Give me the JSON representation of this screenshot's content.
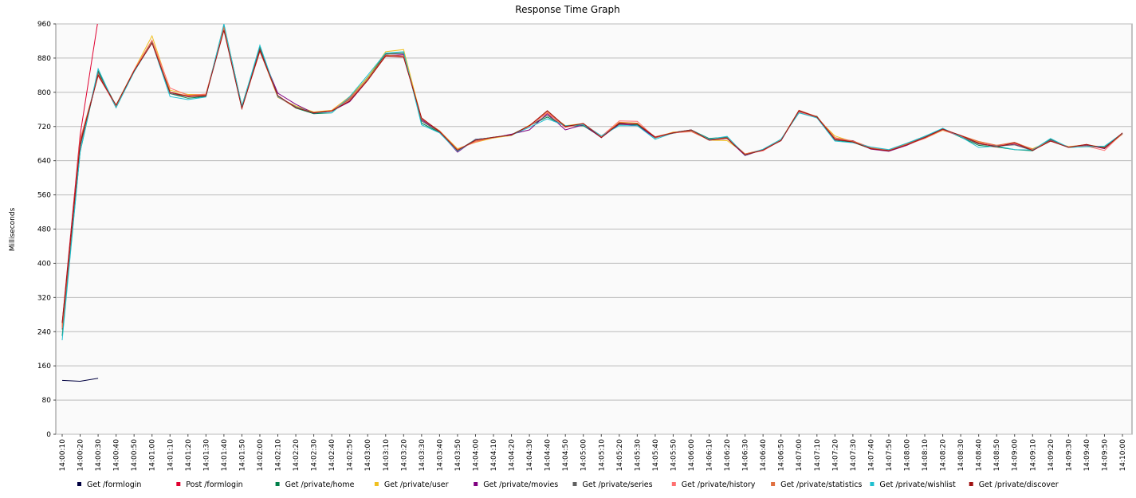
{
  "chart_data": {
    "type": "line",
    "title": "Response Time Graph",
    "y_label": "Milliseconds",
    "categories": [
      "14:00:10",
      "14:00:20",
      "14:00:30",
      "14:00:40",
      "14:00:50",
      "14:01:00",
      "14:01:10",
      "14:01:20",
      "14:01:30",
      "14:01:40",
      "14:01:50",
      "14:02:00",
      "14:02:10",
      "14:02:20",
      "14:02:30",
      "14:02:40",
      "14:02:50",
      "14:03:00",
      "14:03:10",
      "14:03:20",
      "14:03:30",
      "14:03:40",
      "14:03:50",
      "14:04:00",
      "14:04:10",
      "14:04:20",
      "14:04:30",
      "14:04:40",
      "14:04:50",
      "14:05:00",
      "14:05:10",
      "14:05:20",
      "14:05:30",
      "14:05:40",
      "14:05:50",
      "14:06:00",
      "14:06:10",
      "14:06:20",
      "14:06:30",
      "14:06:40",
      "14:06:50",
      "14:07:00",
      "14:07:10",
      "14:07:20",
      "14:07:30",
      "14:07:40",
      "14:07:50",
      "14:08:00",
      "14:08:10",
      "14:08:20",
      "14:08:30",
      "14:08:40",
      "14:08:50",
      "14:09:00",
      "14:09:10",
      "14:09:20",
      "14:09:30",
      "14:09:40",
      "14:09:50",
      "14:10:00"
    ],
    "ylim": [
      0,
      960
    ],
    "yticks": [
      0,
      80,
      160,
      240,
      320,
      400,
      480,
      560,
      640,
      720,
      800,
      880,
      960
    ],
    "grid": true,
    "series": [
      {
        "name": "Get /formlogin",
        "color": "#000040",
        "values": [
          126,
          124,
          131,
          null,
          null,
          null,
          null,
          null,
          null,
          null,
          null,
          null,
          null,
          null,
          null,
          null,
          null,
          null,
          null,
          null,
          null,
          null,
          null,
          null,
          null,
          null,
          null,
          null,
          null,
          null,
          null,
          null,
          null,
          null,
          null,
          null,
          null,
          null,
          null,
          null,
          null,
          null,
          null,
          null,
          null,
          null,
          null,
          null,
          null,
          null,
          null,
          null,
          null,
          null,
          null,
          null,
          null,
          null,
          null,
          null
        ]
      },
      {
        "name": "Post /formlogin",
        "color": "#e00030",
        "values": [
          260,
          700,
          970,
          null,
          null,
          null,
          null,
          null,
          null,
          null,
          null,
          null,
          null,
          null,
          null,
          null,
          null,
          null,
          null,
          null,
          null,
          null,
          null,
          null,
          null,
          null,
          null,
          null,
          null,
          null,
          null,
          null,
          null,
          null,
          null,
          null,
          null,
          null,
          null,
          null,
          null,
          null,
          null,
          null,
          null,
          null,
          null,
          null,
          null,
          null,
          null,
          null,
          null,
          null,
          null,
          null,
          null,
          null,
          null,
          null
        ]
      },
      {
        "name": "Get /private/home",
        "color": "#00804a",
        "values": [
          230,
          660,
          850,
          768,
          848,
          918,
          797,
          786,
          790,
          958,
          768,
          905,
          792,
          763,
          750,
          752,
          788,
          835,
          890,
          892,
          728,
          706,
          663,
          690,
          694,
          701,
          722,
          742,
          721,
          722,
          695,
          725,
          724,
          693,
          706,
          712,
          692,
          695,
          652,
          666,
          690,
          752,
          744,
          688,
          683,
          668,
          664,
          680,
          697,
          715,
          695,
          676,
          672,
          666,
          663,
          690,
          671,
          673,
          672,
          704
        ]
      },
      {
        "name": "Get /private/user",
        "color": "#f0c020",
        "values": [
          255,
          680,
          840,
          770,
          852,
          932,
          805,
          795,
          795,
          950,
          762,
          898,
          788,
          768,
          754,
          758,
          790,
          834,
          895,
          900,
          738,
          710,
          668,
          683,
          693,
          699,
          723,
          752,
          722,
          727,
          696,
          730,
          728,
          694,
          707,
          709,
          688,
          687,
          656,
          664,
          689,
          757,
          740,
          698,
          684,
          669,
          663,
          679,
          692,
          711,
          698,
          684,
          676,
          680,
          668,
          686,
          673,
          677,
          671,
          702
        ]
      },
      {
        "name": "Get /private/movies",
        "color": "#800080",
        "values": [
          250,
          675,
          842,
          766,
          850,
          918,
          800,
          790,
          793,
          952,
          764,
          900,
          798,
          772,
          751,
          756,
          778,
          828,
          886,
          888,
          736,
          707,
          660,
          690,
          694,
          702,
          712,
          750,
          712,
          724,
          694,
          726,
          722,
          694,
          705,
          712,
          688,
          692,
          652,
          666,
          687,
          756,
          741,
          688,
          687,
          667,
          662,
          676,
          694,
          712,
          697,
          679,
          675,
          679,
          664,
          687,
          671,
          677,
          668,
          703
        ]
      },
      {
        "name": "Get /private/series",
        "color": "#606060",
        "values": [
          245,
          672,
          847,
          764,
          849,
          921,
          797,
          790,
          791,
          957,
          766,
          902,
          790,
          766,
          752,
          756,
          785,
          831,
          889,
          891,
          733,
          707,
          664,
          689,
          695,
          700,
          721,
          746,
          719,
          726,
          698,
          727,
          727,
          695,
          704,
          711,
          691,
          694,
          654,
          665,
          688,
          756,
          742,
          688,
          685,
          670,
          665,
          679,
          696,
          714,
          697,
          679,
          674,
          677,
          664,
          689,
          672,
          675,
          671,
          703
        ]
      },
      {
        "name": "Get /private/history",
        "color": "#ff7070",
        "values": [
          248,
          690,
          838,
          768,
          852,
          922,
          810,
          793,
          796,
          950,
          762,
          895,
          792,
          764,
          752,
          757,
          787,
          829,
          884,
          884,
          740,
          708,
          666,
          684,
          695,
          700,
          721,
          752,
          718,
          726,
          697,
          733,
          732,
          694,
          705,
          708,
          689,
          692,
          655,
          663,
          688,
          754,
          741,
          692,
          686,
          671,
          664,
          677,
          692,
          712,
          698,
          682,
          676,
          680,
          666,
          686,
          672,
          674,
          664,
          704
        ]
      },
      {
        "name": "Get /private/statistics",
        "color": "#e07040",
        "values": [
          252,
          685,
          842,
          768,
          850,
          920,
          800,
          792,
          794,
          953,
          764,
          897,
          789,
          764,
          753,
          757,
          783,
          830,
          887,
          885,
          738,
          710,
          666,
          686,
          694,
          700,
          722,
          755,
          719,
          727,
          695,
          729,
          727,
          696,
          706,
          709,
          689,
          693,
          656,
          666,
          688,
          758,
          743,
          694,
          686,
          670,
          664,
          679,
          693,
          713,
          699,
          685,
          676,
          683,
          667,
          686,
          672,
          678,
          669,
          702
        ]
      },
      {
        "name": "Get /private/wishlist",
        "color": "#20c0d0",
        "values": [
          220,
          660,
          855,
          764,
          848,
          916,
          790,
          783,
          789,
          960,
          766,
          910,
          790,
          765,
          752,
          752,
          790,
          840,
          892,
          895,
          724,
          705,
          662,
          689,
          695,
          700,
          718,
          738,
          722,
          724,
          698,
          722,
          722,
          690,
          705,
          712,
          690,
          697,
          653,
          667,
          690,
          752,
          740,
          686,
          682,
          672,
          666,
          681,
          697,
          716,
          696,
          671,
          674,
          666,
          665,
          692,
          671,
          673,
          674,
          704
        ]
      },
      {
        "name": "Get /private/discover",
        "color": "#a01010",
        "values": [
          260,
          680,
          840,
          770,
          850,
          915,
          800,
          790,
          792,
          945,
          762,
          898,
          792,
          764,
          752,
          756,
          780,
          828,
          885,
          882,
          740,
          708,
          664,
          688,
          695,
          700,
          722,
          757,
          720,
          727,
          694,
          728,
          726,
          695,
          705,
          712,
          688,
          692,
          654,
          665,
          687,
          757,
          742,
          690,
          684,
          668,
          663,
          677,
          694,
          714,
          699,
          681,
          672,
          682,
          664,
          686,
          671,
          678,
          669,
          705
        ]
      }
    ]
  }
}
